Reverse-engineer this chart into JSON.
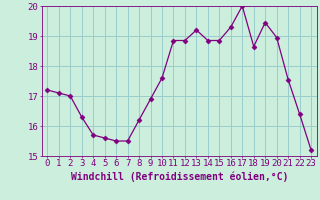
{
  "x": [
    0,
    1,
    2,
    3,
    4,
    5,
    6,
    7,
    8,
    9,
    10,
    11,
    12,
    13,
    14,
    15,
    16,
    17,
    18,
    19,
    20,
    21,
    22,
    23
  ],
  "y": [
    17.2,
    17.1,
    17.0,
    16.3,
    15.7,
    15.6,
    15.5,
    15.5,
    16.2,
    16.9,
    17.6,
    18.85,
    18.85,
    19.2,
    18.85,
    18.85,
    19.3,
    20.0,
    18.65,
    19.45,
    18.95,
    17.55,
    16.4,
    15.2
  ],
  "line_color": "#800080",
  "marker": "D",
  "marker_size": 2.5,
  "bg_color": "#cceedd",
  "grid_color": "#99cccc",
  "xlabel": "Windchill (Refroidissement éolien,°C)",
  "xlabel_fontsize": 7,
  "tick_fontsize": 6.5,
  "ylim": [
    15,
    20
  ],
  "xlim": [
    -0.5,
    23.5
  ],
  "yticks": [
    15,
    16,
    17,
    18,
    19,
    20
  ],
  "xticks": [
    0,
    1,
    2,
    3,
    4,
    5,
    6,
    7,
    8,
    9,
    10,
    11,
    12,
    13,
    14,
    15,
    16,
    17,
    18,
    19,
    20,
    21,
    22,
    23
  ]
}
